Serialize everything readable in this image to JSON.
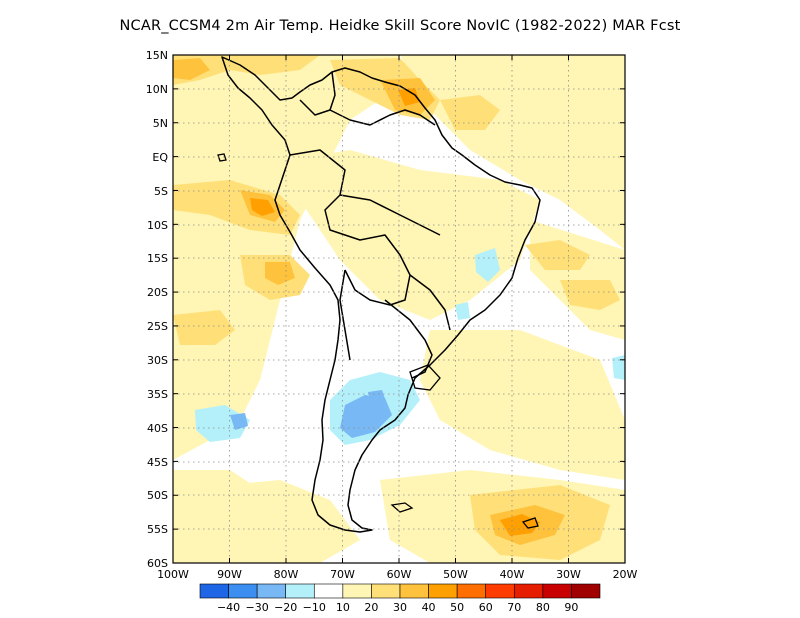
{
  "title": "NCAR_CCSM4  2m Air Temp. Heidke Skill Score NovIC (1982-2022) MAR Fcst",
  "lat_labels": [
    "15N",
    "10N",
    "5N",
    "EQ",
    "5S",
    "10S",
    "15S",
    "20S",
    "25S",
    "30S",
    "35S",
    "40S",
    "45S",
    "50S",
    "55S",
    "60S"
  ],
  "lon_labels": [
    "100W",
    "90W",
    "80W",
    "70W",
    "60W",
    "50W",
    "40W",
    "30W",
    "20W"
  ],
  "colorbar": {
    "labels": [
      "-40",
      "-30",
      "-20",
      "-10",
      "10",
      "20",
      "30",
      "40",
      "50",
      "60",
      "70",
      "80",
      "90"
    ],
    "colors": [
      "#1f66e6",
      "#3c8ef0",
      "#78b8f5",
      "#b4f0fa",
      "#ffffff",
      "#fff5b4",
      "#ffe078",
      "#ffc23c",
      "#ffa000",
      "#ff6e00",
      "#ff3c00",
      "#e61e00",
      "#c80000",
      "#a00000"
    ]
  },
  "palette": {
    "land_outline": "#000000",
    "grid": "#8c8c8c"
  },
  "map_extent": {
    "lon_min": -100,
    "lon_max": -20,
    "lat_min": -60,
    "lat_max": 15
  }
}
